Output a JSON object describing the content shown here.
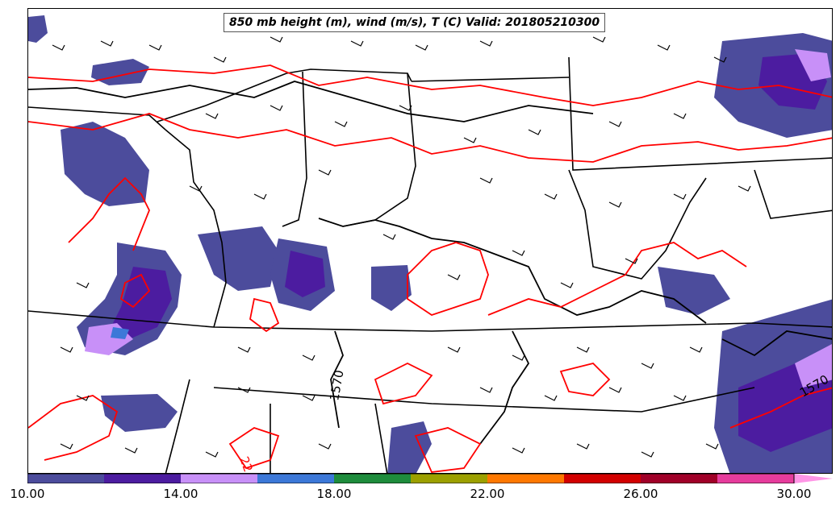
{
  "title": "850 mb height (m), wind (m/s), T (C) Valid: 201805210300",
  "contour_labels": {
    "height_left": "1570",
    "height_right": "1570",
    "temperature": "22"
  },
  "colorbar": {
    "ticks": [
      "10.00",
      "14.00",
      "18.00",
      "22.00",
      "26.00",
      "30.00"
    ],
    "colors": [
      "#4c4c9c",
      "#4c1ca0",
      "#c890f8",
      "#3c78d8",
      "#1e8c3c",
      "#9ca000",
      "#ff7800",
      "#d20000",
      "#a00028",
      "#e63c9c"
    ],
    "extend_color": "#ff96e6"
  },
  "colors": {
    "temperature_contour": "#ff0000",
    "height_contour": "#000000",
    "boundaries": "#000000"
  }
}
